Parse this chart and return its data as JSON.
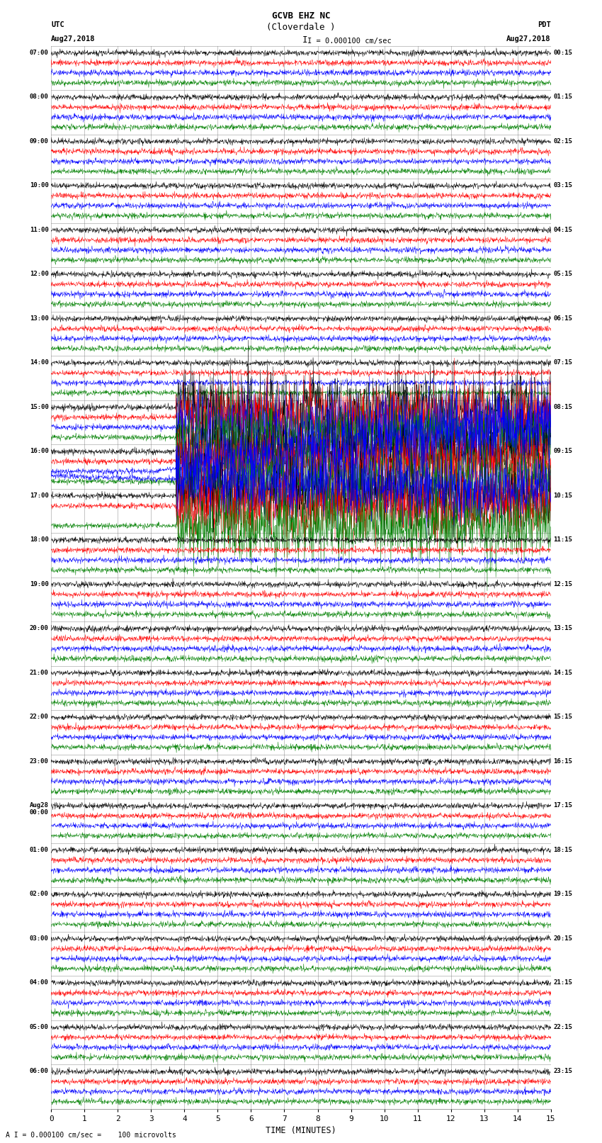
{
  "title_line1": "GCVB EHZ NC",
  "title_line2": "(Cloverdale )",
  "scale_text": "I = 0.000100 cm/sec",
  "left_header_line1": "UTC",
  "left_header_line2": "Aug27,2018",
  "right_header_line1": "PDT",
  "right_header_line2": "Aug27,2018",
  "bottom_note": "A I = 0.000100 cm/sec =    100 microvolts",
  "xlabel": "TIME (MINUTES)",
  "xticks": [
    0,
    1,
    2,
    3,
    4,
    5,
    6,
    7,
    8,
    9,
    10,
    11,
    12,
    13,
    14,
    15
  ],
  "bg_color": "#ffffff",
  "trace_colors": [
    "black",
    "red",
    "blue",
    "green"
  ],
  "minutes_per_row": 15,
  "traces_per_row": 4,
  "noise_amplitude": 0.3,
  "fig_width": 8.5,
  "fig_height": 16.13,
  "left_label_utc_times": [
    "07:00",
    "08:00",
    "09:00",
    "10:00",
    "11:00",
    "12:00",
    "13:00",
    "14:00",
    "15:00",
    "16:00",
    "17:00",
    "18:00",
    "19:00",
    "20:00",
    "21:00",
    "22:00",
    "23:00",
    "Aug28\n00:00",
    "01:00",
    "02:00",
    "03:00",
    "04:00",
    "05:00",
    "06:00"
  ],
  "right_label_pdt_times": [
    "00:15",
    "01:15",
    "02:15",
    "03:15",
    "04:15",
    "05:15",
    "06:15",
    "07:15",
    "08:15",
    "09:15",
    "10:15",
    "11:15",
    "12:15",
    "13:15",
    "14:15",
    "15:15",
    "16:15",
    "17:15",
    "18:15",
    "19:15",
    "20:15",
    "21:15",
    "22:15",
    "23:15"
  ],
  "grid_color": "#777777",
  "seismic_event_row": 9,
  "seismic_drift_row": 9,
  "event_rows": [
    8,
    9,
    10
  ],
  "event_amp_mult": 5,
  "blue_drift_row": 9,
  "blue_drift_row2": 10
}
